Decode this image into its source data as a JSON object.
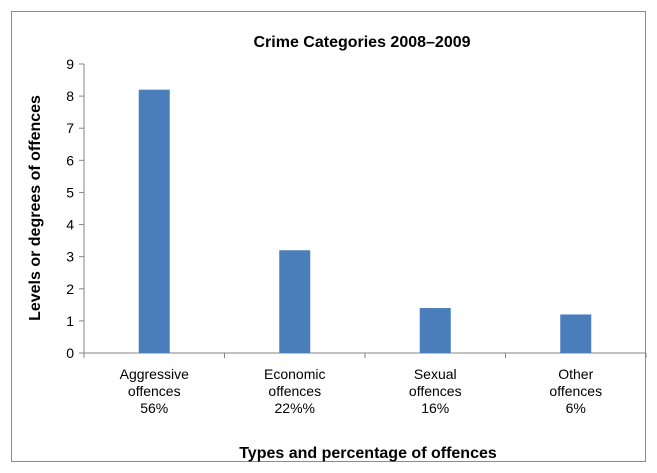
{
  "chart_data": {
    "type": "bar",
    "title": "Crime Categories 2008–2009",
    "xlabel": "Types and percentage of offences",
    "ylabel": "Levels or degrees of offences",
    "categories": [
      [
        "Aggressive",
        "offences",
        "56%"
      ],
      [
        "Economic",
        "offences",
        "22%%"
      ],
      [
        "Sexual",
        "offences",
        "16%"
      ],
      [
        "Other",
        "offences",
        "6%"
      ]
    ],
    "values": [
      8.2,
      3.2,
      1.4,
      1.2
    ],
    "ylim": [
      0,
      9
    ],
    "yticks": [
      0,
      1,
      2,
      3,
      4,
      5,
      6,
      7,
      8,
      9
    ],
    "grid": false,
    "legend": "none",
    "bar_color": "#4a7ebb"
  }
}
